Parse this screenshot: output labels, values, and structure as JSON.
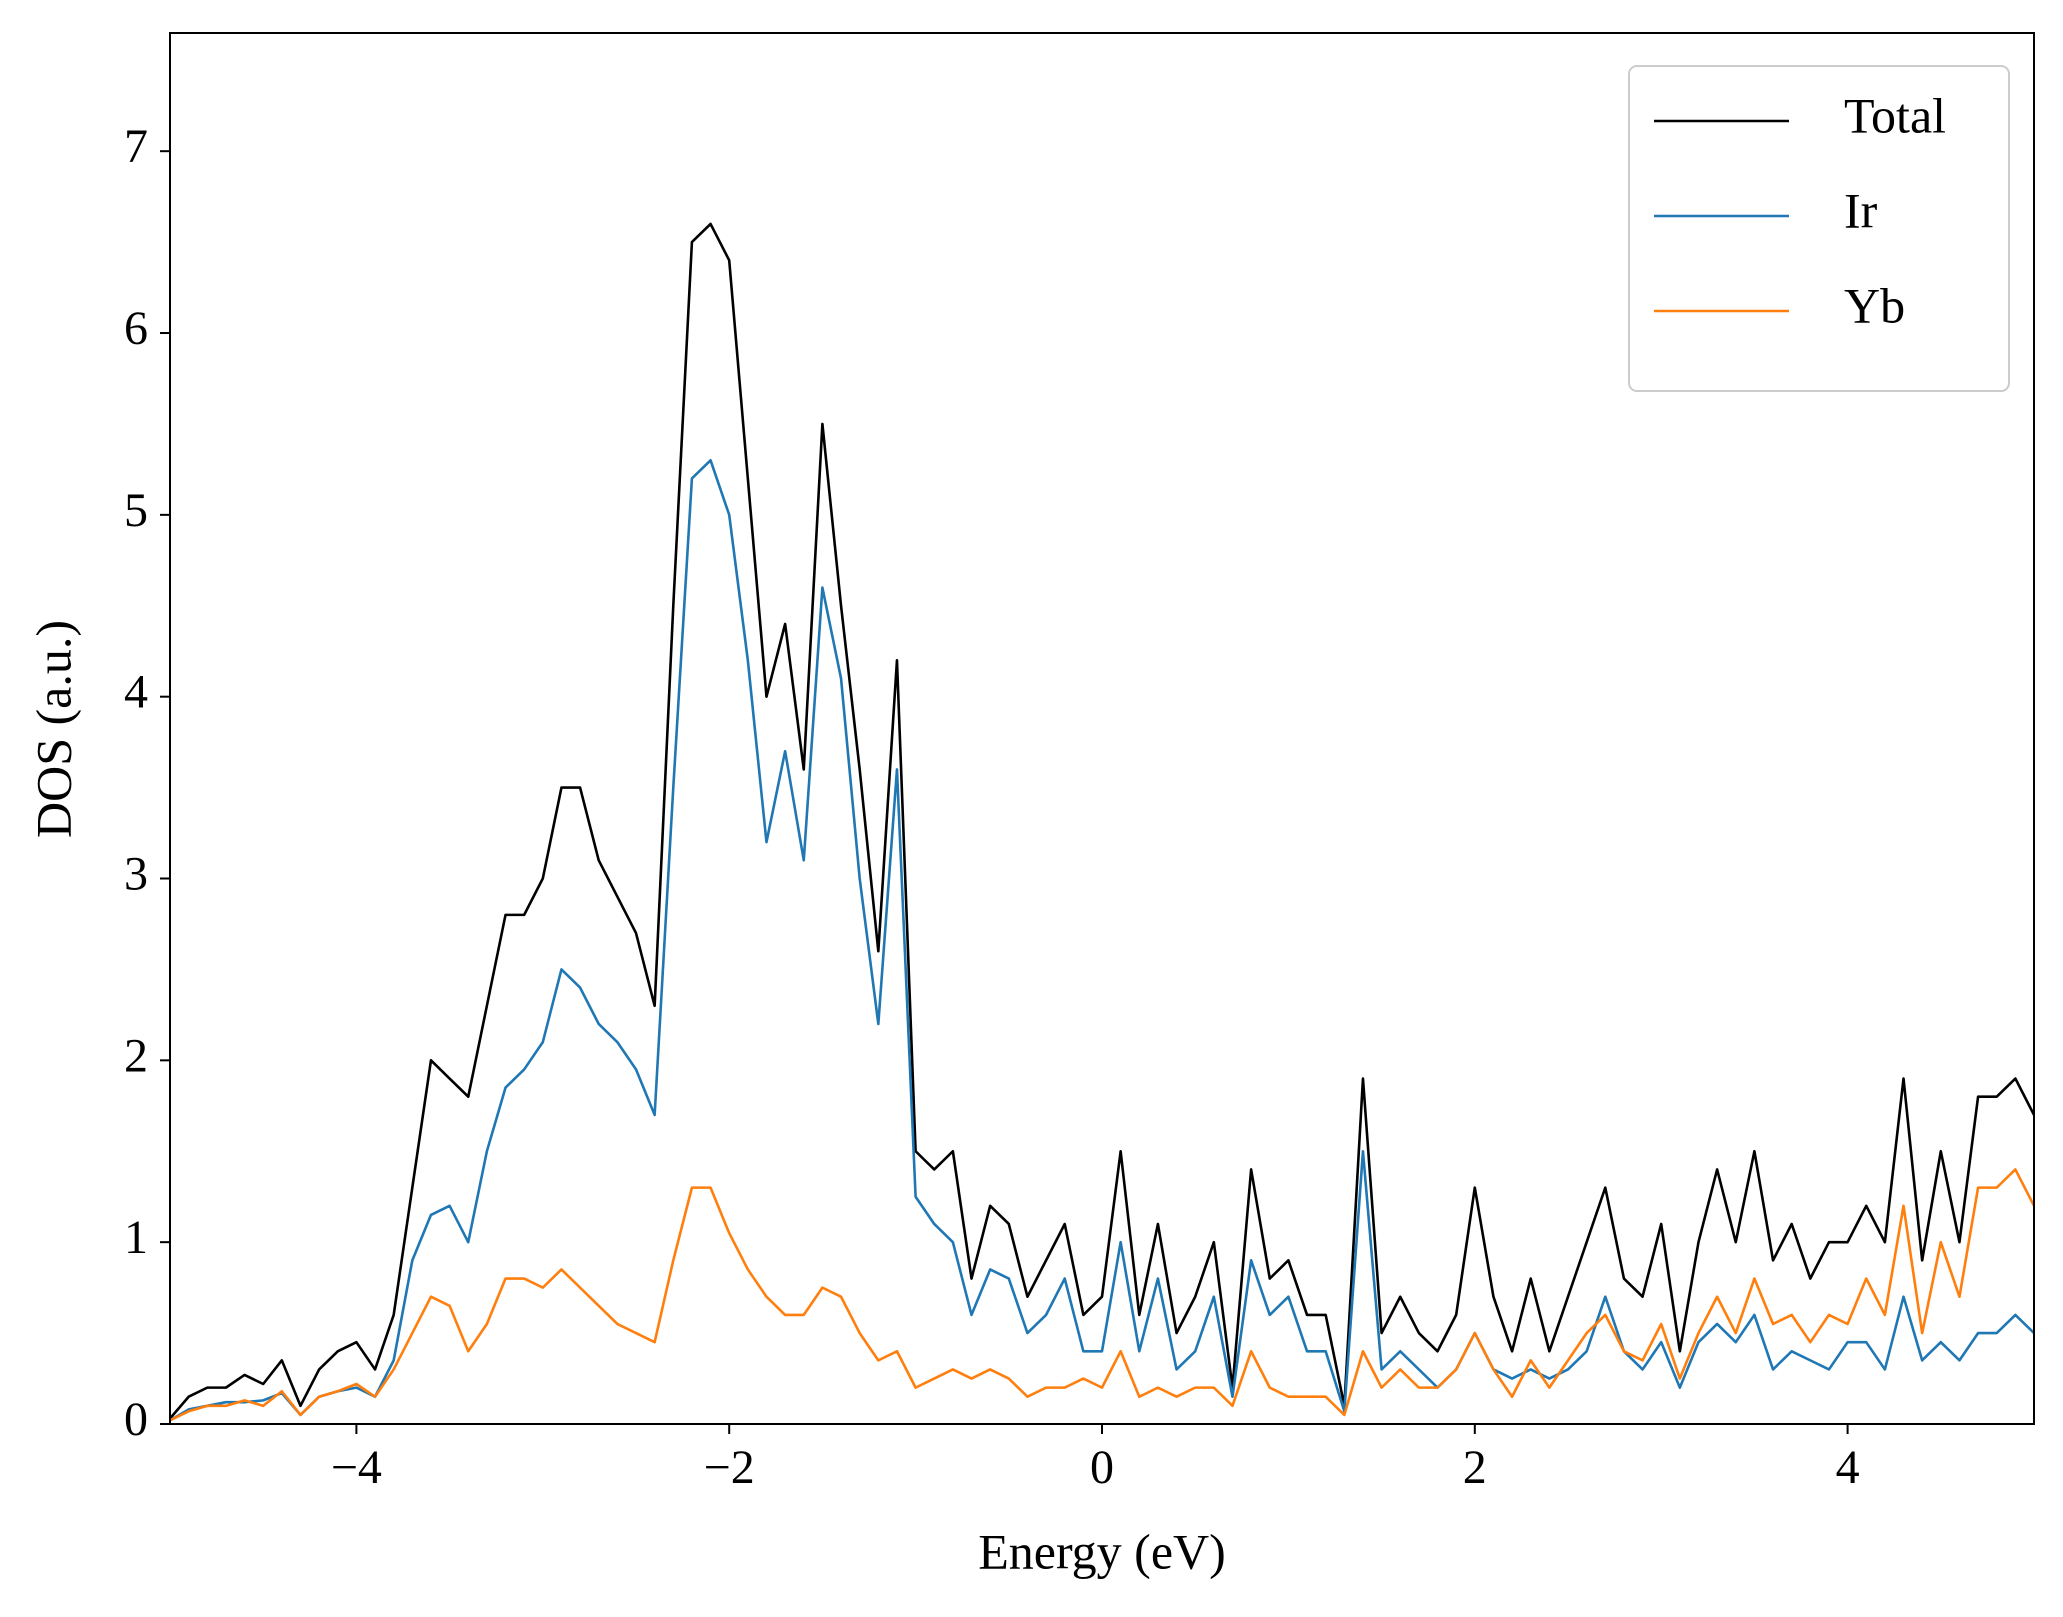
{
  "chart_data": {
    "type": "line",
    "xlabel": "Energy (eV)",
    "ylabel": "DOS (a.u.)",
    "xlim": [
      -5,
      5
    ],
    "ylim": [
      0,
      7.65
    ],
    "xticks": [
      {
        "value": -4,
        "label": "−4"
      },
      {
        "value": -2,
        "label": "−2"
      },
      0,
      2,
      4
    ],
    "yticks": [
      0,
      1,
      2,
      3,
      4,
      5,
      6,
      7
    ],
    "legend": "upper right",
    "x": [
      -5.0,
      -4.9,
      -4.8,
      -4.7,
      -4.6,
      -4.5,
      -4.4,
      -4.3,
      -4.2,
      -4.1,
      -4.0,
      -3.9,
      -3.8,
      -3.7,
      -3.6,
      -3.5,
      -3.4,
      -3.3,
      -3.2,
      -3.1,
      -3.0,
      -2.9,
      -2.8,
      -2.7,
      -2.6,
      -2.5,
      -2.4,
      -2.3,
      -2.2,
      -2.1,
      -2.0,
      -1.9,
      -1.8,
      -1.7,
      -1.6,
      -1.5,
      -1.4,
      -1.3,
      -1.2,
      -1.1,
      -1.0,
      -0.9,
      -0.8,
      -0.7,
      -0.6,
      -0.5,
      -0.4,
      -0.3,
      -0.2,
      -0.1,
      0.0,
      0.1,
      0.2,
      0.3,
      0.4,
      0.5,
      0.6,
      0.7,
      0.8,
      0.9,
      1.0,
      1.1,
      1.2,
      1.3,
      1.4,
      1.5,
      1.6,
      1.7,
      1.8,
      1.9,
      2.0,
      2.1,
      2.2,
      2.3,
      2.4,
      2.5,
      2.6,
      2.7,
      2.8,
      2.9,
      3.0,
      3.1,
      3.2,
      3.3,
      3.4,
      3.5,
      3.6,
      3.7,
      3.8,
      3.9,
      4.0,
      4.1,
      4.2,
      4.3,
      4.4,
      4.5,
      4.6,
      4.7,
      4.8,
      4.9,
      5.0
    ],
    "series": [
      {
        "name": "Total",
        "color": "#000000",
        "values": [
          0.03,
          0.15,
          0.2,
          0.2,
          0.27,
          0.22,
          0.35,
          0.1,
          0.3,
          0.4,
          0.45,
          0.3,
          0.6,
          1.3,
          2.0,
          1.9,
          1.8,
          2.3,
          2.8,
          2.8,
          3.0,
          3.5,
          3.5,
          3.1,
          2.9,
          2.7,
          2.3,
          4.5,
          6.5,
          6.6,
          6.4,
          5.2,
          4.0,
          4.4,
          3.6,
          5.5,
          4.5,
          3.6,
          2.6,
          4.2,
          1.5,
          1.4,
          1.5,
          0.8,
          1.2,
          1.1,
          0.7,
          0.9,
          1.1,
          0.6,
          0.7,
          1.5,
          0.6,
          1.1,
          0.5,
          0.7,
          1.0,
          0.2,
          1.4,
          0.8,
          0.9,
          0.6,
          0.6,
          0.1,
          1.9,
          0.5,
          0.7,
          0.5,
          0.4,
          0.6,
          1.3,
          0.7,
          0.4,
          0.8,
          0.4,
          0.7,
          1.0,
          1.3,
          0.8,
          0.7,
          1.1,
          0.4,
          1.0,
          1.4,
          1.0,
          1.5,
          0.9,
          1.1,
          0.8,
          1.0,
          1.0,
          1.2,
          1.0,
          1.9,
          0.9,
          1.5,
          1.0,
          1.8,
          1.8,
          1.9,
          1.7
        ]
      },
      {
        "name": "Ir",
        "color": "#1f77b4",
        "values": [
          0.02,
          0.08,
          0.1,
          0.12,
          0.12,
          0.13,
          0.17,
          0.05,
          0.15,
          0.18,
          0.2,
          0.15,
          0.35,
          0.9,
          1.15,
          1.2,
          1.0,
          1.5,
          1.85,
          1.95,
          2.1,
          2.5,
          2.4,
          2.2,
          2.1,
          1.95,
          1.7,
          3.5,
          5.2,
          5.3,
          5.0,
          4.2,
          3.2,
          3.7,
          3.1,
          4.6,
          4.1,
          3.0,
          2.2,
          3.6,
          1.25,
          1.1,
          1.0,
          0.6,
          0.85,
          0.8,
          0.5,
          0.6,
          0.8,
          0.4,
          0.4,
          1.0,
          0.4,
          0.8,
          0.3,
          0.4,
          0.7,
          0.15,
          0.9,
          0.6,
          0.7,
          0.4,
          0.4,
          0.07,
          1.5,
          0.3,
          0.4,
          0.3,
          0.2,
          0.3,
          0.5,
          0.3,
          0.25,
          0.3,
          0.25,
          0.3,
          0.4,
          0.7,
          0.4,
          0.3,
          0.45,
          0.2,
          0.45,
          0.55,
          0.45,
          0.6,
          0.3,
          0.4,
          0.35,
          0.3,
          0.45,
          0.45,
          0.3,
          0.7,
          0.35,
          0.45,
          0.35,
          0.5,
          0.5,
          0.6,
          0.5
        ]
      },
      {
        "name": "Yb",
        "color": "#ff7f0e",
        "values": [
          0.02,
          0.07,
          0.1,
          0.1,
          0.13,
          0.1,
          0.18,
          0.05,
          0.15,
          0.18,
          0.22,
          0.15,
          0.3,
          0.5,
          0.7,
          0.65,
          0.4,
          0.55,
          0.8,
          0.8,
          0.75,
          0.85,
          0.75,
          0.65,
          0.55,
          0.5,
          0.45,
          0.9,
          1.3,
          1.3,
          1.05,
          0.85,
          0.7,
          0.6,
          0.6,
          0.75,
          0.7,
          0.5,
          0.35,
          0.4,
          0.2,
          0.25,
          0.3,
          0.25,
          0.3,
          0.25,
          0.15,
          0.2,
          0.2,
          0.25,
          0.2,
          0.4,
          0.15,
          0.2,
          0.15,
          0.2,
          0.2,
          0.1,
          0.4,
          0.2,
          0.15,
          0.15,
          0.15,
          0.05,
          0.4,
          0.2,
          0.3,
          0.2,
          0.2,
          0.3,
          0.5,
          0.3,
          0.15,
          0.35,
          0.2,
          0.35,
          0.5,
          0.6,
          0.4,
          0.35,
          0.55,
          0.25,
          0.5,
          0.7,
          0.5,
          0.8,
          0.55,
          0.6,
          0.45,
          0.6,
          0.55,
          0.8,
          0.6,
          1.2,
          0.5,
          1.0,
          0.7,
          1.3,
          1.3,
          1.4,
          1.2
        ]
      }
    ]
  }
}
